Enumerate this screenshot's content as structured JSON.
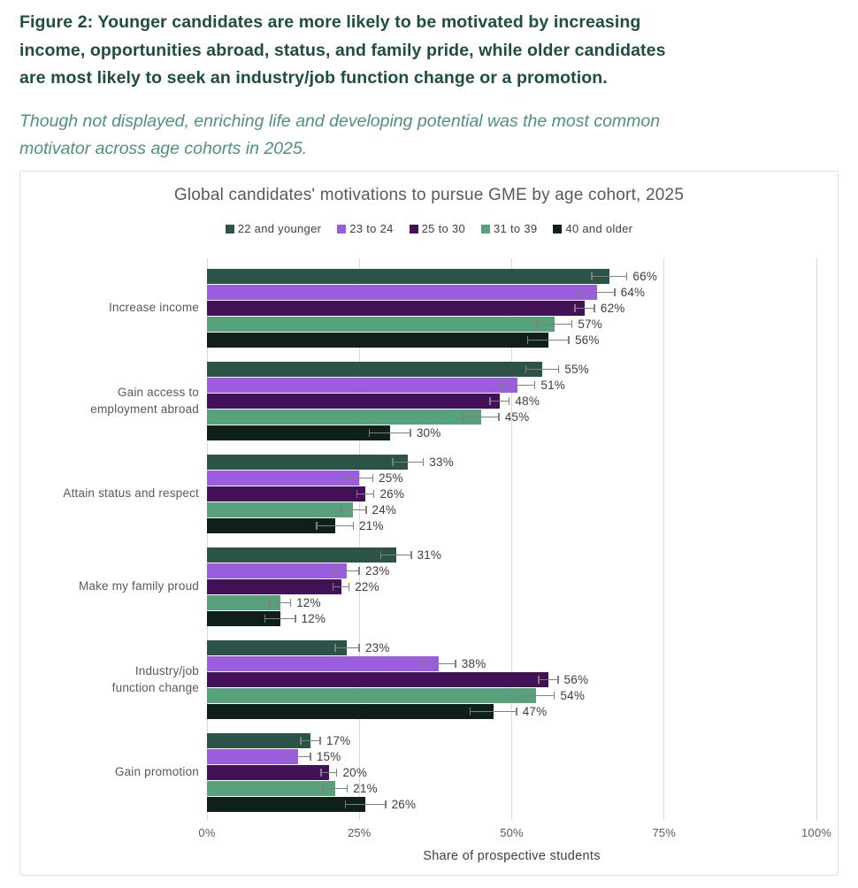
{
  "header": {
    "title": "Figure 2: Younger candidates are more likely to be motivated by increasing\nincome, opportunities abroad, status, and family pride, while older candidates\nare most likely to seek an industry/job function change or a promotion.",
    "subtitle": "Though not displayed, enriching life and developing potential was the most common\nmotivator across age cohorts in 2025."
  },
  "colors": {
    "page_title": "#1D4E40",
    "page_subtitle": "#4F9080",
    "chart_title_text": "#595959",
    "label_text": "#3D3D3D",
    "category_text": "#595959",
    "grid": "#D9D9D9",
    "error_bar": "#7F7F7F",
    "card_border": "#DEDEDE"
  },
  "chart_data": {
    "type": "bar",
    "orientation": "horizontal",
    "title": "Global candidates' motivations to pursue GME by age cohort, 2025",
    "xlabel": "Share of prospective students",
    "xlim": [
      0,
      100
    ],
    "x_tick_values": [
      0,
      25,
      50,
      75,
      100
    ],
    "x_ticks": [
      "0%",
      "25%",
      "50%",
      "75%",
      "100%"
    ],
    "grid": "vertical",
    "legend_position": "top",
    "error_bars": true,
    "value_label_format": "{v}%",
    "categories": [
      "Increase income",
      "Gain access to\nemployment abroad",
      "Attain status and respect",
      "Make my family proud",
      "Industry/job\nfunction change",
      "Gain promotion"
    ],
    "series": [
      {
        "name": "22 and younger",
        "color": "#2B5348",
        "values": [
          66,
          55,
          33,
          31,
          23,
          17
        ],
        "errors": [
          3.0,
          2.8,
          2.6,
          2.6,
          2.1,
          1.7
        ]
      },
      {
        "name": "23 to 24",
        "color": "#9C5CE0",
        "values": [
          64,
          51,
          25,
          23,
          38,
          15
        ],
        "errors": [
          3.0,
          2.9,
          2.3,
          2.1,
          2.9,
          2.1
        ]
      },
      {
        "name": "25 to 30",
        "color": "#421157",
        "values": [
          62,
          48,
          26,
          22,
          56,
          20
        ],
        "errors": [
          1.7,
          1.7,
          1.5,
          1.4,
          1.7,
          1.4
        ]
      },
      {
        "name": "31 to 39",
        "color": "#57A17D",
        "values": [
          57,
          45,
          24,
          12,
          54,
          21
        ],
        "errors": [
          3.0,
          3.0,
          2.2,
          1.8,
          3.1,
          2.1
        ]
      },
      {
        "name": "40 and older",
        "color": "#0F2018",
        "values": [
          56,
          30,
          21,
          12,
          47,
          26
        ],
        "errors": [
          3.5,
          3.5,
          3.1,
          2.6,
          3.9,
          3.4
        ]
      }
    ]
  }
}
